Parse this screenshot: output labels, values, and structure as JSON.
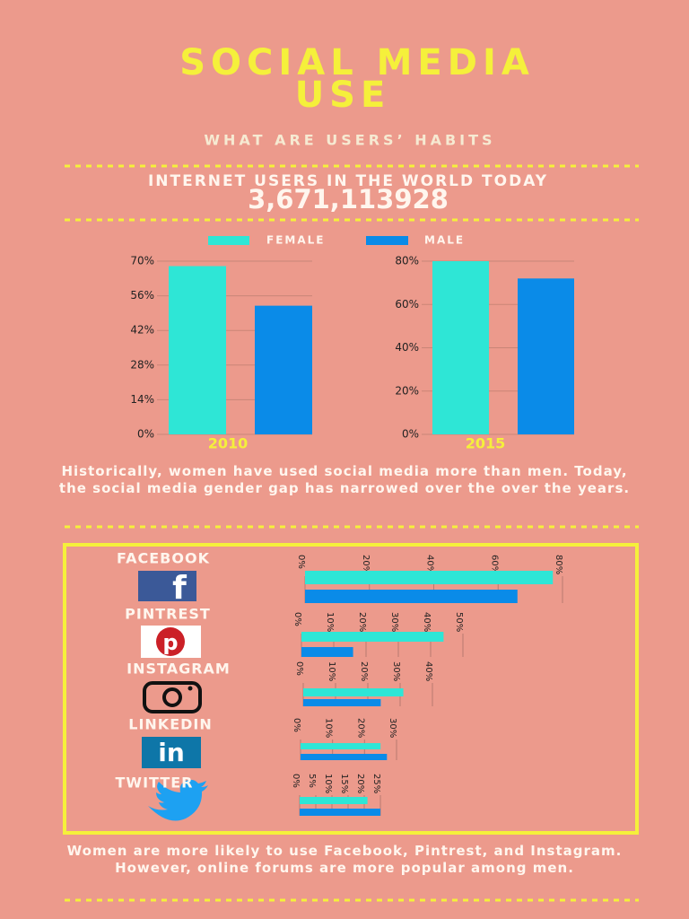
{
  "header": {
    "title": [
      "SOCIAL MEDIA",
      "USE"
    ],
    "subtitle": "WHAT ARE USERS’ HABITS",
    "stat_label": "INTERNET USERS IN THE WORLD TODAY",
    "stat_value": "3,671,113928"
  },
  "paragraphs": [
    "Historically, women have used social media more than men. Today, the social media gender gap has narrowed over the over the years.",
    "Women are more likely to use Facebook, Pintrest, and Instagram. However, online forums are more popular among men."
  ],
  "chart_data": [
    {
      "type": "bar",
      "categories": [
        "2010"
      ],
      "series": [
        {
          "name": "FEMALE",
          "color": "#2ee6d6",
          "values": [
            68
          ]
        },
        {
          "name": "MALE",
          "color": "#0a8be8",
          "values": [
            52
          ]
        }
      ],
      "ylim": [
        0,
        70
      ],
      "yticks": [
        {
          "value": 0,
          "label": "0%"
        },
        {
          "value": 14,
          "label": "14%"
        },
        {
          "value": 28,
          "label": "28%"
        },
        {
          "value": 42,
          "label": "42%"
        },
        {
          "value": 56,
          "label": "56%"
        },
        {
          "value": 70,
          "label": "70%"
        }
      ],
      "grid": true
    },
    {
      "type": "bar",
      "categories": [
        "2015"
      ],
      "series": [
        {
          "color": "#2ee6d6",
          "values": [
            80
          ]
        },
        {
          "color": "#0a8be8",
          "values": [
            72
          ]
        }
      ],
      "ylim": [
        0,
        80
      ],
      "yticks": [
        {
          "value": 0,
          "label": "0%"
        },
        {
          "value": 20,
          "label": "20%"
        },
        {
          "value": 40,
          "label": "40%"
        },
        {
          "value": 60,
          "label": "60%"
        },
        {
          "value": 80,
          "label": "80%"
        }
      ],
      "grid": true
    },
    {
      "type": "barh",
      "title": "FACEBOOK",
      "series": [
        {
          "color": "#2ee6d6",
          "values": [
            77
          ]
        },
        {
          "color": "#0a8be8",
          "values": [
            66
          ]
        }
      ],
      "xlim": [
        0,
        80
      ],
      "xticks": [
        {
          "value": 0,
          "label": "0%"
        },
        {
          "value": 20,
          "label": "20%"
        },
        {
          "value": 40,
          "label": "40%"
        },
        {
          "value": 60,
          "label": "60%"
        },
        {
          "value": 80,
          "label": "80%"
        }
      ],
      "grid": true
    },
    {
      "type": "barh",
      "title": "PINTREST",
      "series": [
        {
          "color": "#2ee6d6",
          "values": [
            44
          ]
        },
        {
          "color": "#0a8be8",
          "values": [
            16
          ]
        }
      ],
      "xlim": [
        0,
        50
      ],
      "xticks": [
        {
          "value": 0,
          "label": "0%"
        },
        {
          "value": 10,
          "label": "10%"
        },
        {
          "value": 20,
          "label": "20%"
        },
        {
          "value": 30,
          "label": "30%"
        },
        {
          "value": 40,
          "label": "40%"
        },
        {
          "value": 50,
          "label": "50%"
        }
      ],
      "grid": true
    },
    {
      "type": "barh",
      "title": "INSTAGRAM",
      "series": [
        {
          "color": "#2ee6d6",
          "values": [
            31
          ]
        },
        {
          "color": "#0a8be8",
          "values": [
            24
          ]
        }
      ],
      "xlim": [
        0,
        40
      ],
      "xticks": [
        {
          "value": 0,
          "label": "0%"
        },
        {
          "value": 10,
          "label": "10%"
        },
        {
          "value": 20,
          "label": "20%"
        },
        {
          "value": 30,
          "label": "30%"
        },
        {
          "value": 40,
          "label": "40%"
        }
      ],
      "grid": true
    },
    {
      "type": "barh",
      "title": "LINKEDIN",
      "series": [
        {
          "color": "#2ee6d6",
          "values": [
            25
          ]
        },
        {
          "color": "#0a8be8",
          "values": [
            27
          ]
        }
      ],
      "xlim": [
        0,
        30
      ],
      "xticks": [
        {
          "value": 0,
          "label": "0%"
        },
        {
          "value": 10,
          "label": "10%"
        },
        {
          "value": 20,
          "label": "20%"
        },
        {
          "value": 30,
          "label": "30%"
        }
      ],
      "grid": true
    },
    {
      "type": "barh",
      "title": "TWITTER",
      "series": [
        {
          "color": "#2ee6d6",
          "values": [
            21
          ]
        },
        {
          "color": "#0a8be8",
          "values": [
            25
          ]
        }
      ],
      "xlim": [
        0,
        25
      ],
      "xticks": [
        {
          "value": 0,
          "label": "0%"
        },
        {
          "value": 5,
          "label": "5%"
        },
        {
          "value": 10,
          "label": "10%"
        },
        {
          "value": 15,
          "label": "15%"
        },
        {
          "value": 20,
          "label": "20%"
        },
        {
          "value": 25,
          "label": "25%"
        }
      ],
      "grid": true
    }
  ]
}
